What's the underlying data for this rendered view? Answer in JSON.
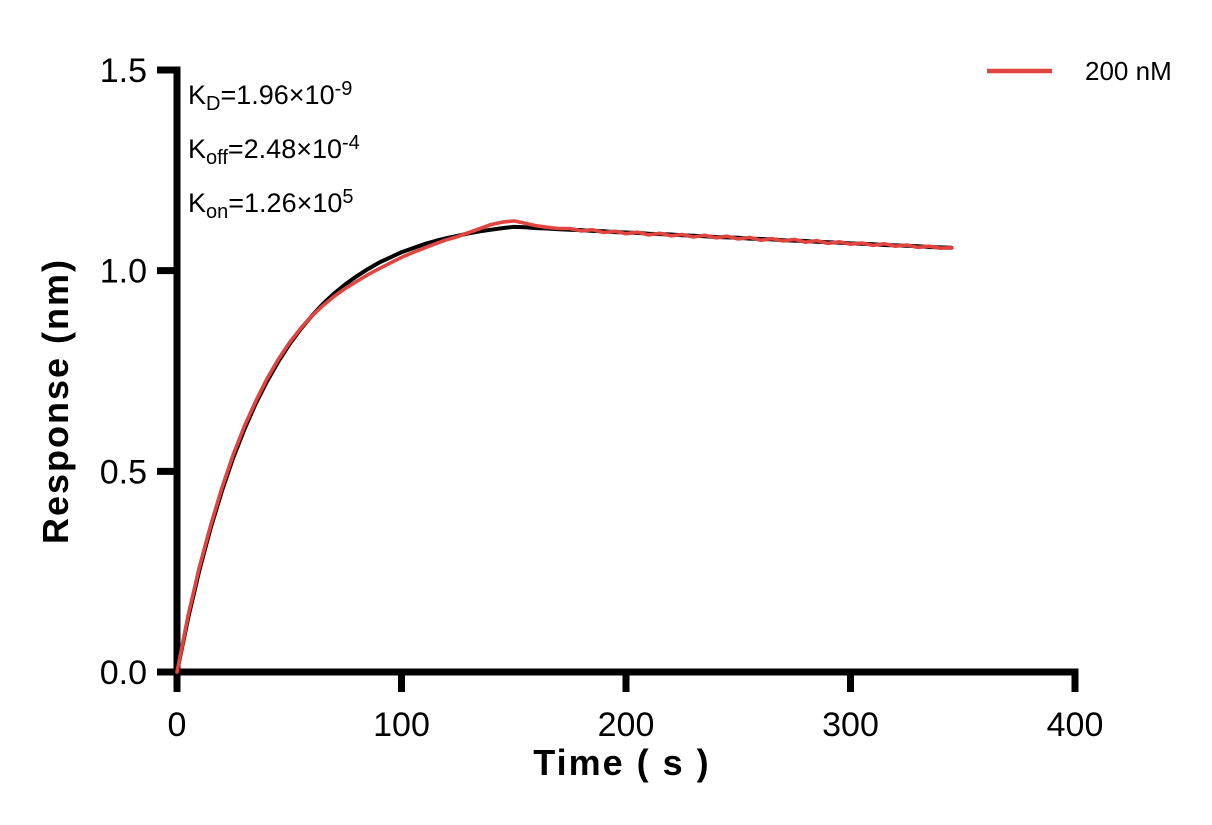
{
  "chart": {
    "background": "#ffffff",
    "axis_color": "#000000",
    "text_color": "#000000"
  },
  "chart_data": {
    "type": "line",
    "title": "",
    "xlabel": "Time ( s )",
    "ylabel": "Response (nm)",
    "xlim": [
      0,
      400
    ],
    "ylim": [
      0,
      1.5
    ],
    "x_tick_labels": [
      "0",
      "100",
      "200",
      "300",
      "400"
    ],
    "y_tick_labels": [
      "0.0",
      "0.5",
      "1.0",
      "1.5"
    ],
    "grid": false,
    "legend_position": "top-right",
    "legend": [
      {
        "label": "200 nM",
        "color": "#E2453F"
      }
    ],
    "annotations": [
      {
        "k": "K",
        "sub": "D",
        "mid": "=1.96×10",
        "sup": "-9"
      },
      {
        "k": "K",
        "sub": "off",
        "mid": "=2.48×10",
        "sup": "-4"
      },
      {
        "k": "K",
        "sub": "on",
        "mid": "=1.26×10",
        "sup": "5"
      }
    ],
    "x": [
      0,
      5,
      10,
      15,
      20,
      25,
      30,
      35,
      40,
      45,
      50,
      55,
      60,
      65,
      70,
      75,
      80,
      85,
      90,
      95,
      100,
      105,
      110,
      115,
      120,
      125,
      130,
      135,
      140,
      145,
      150,
      155,
      160,
      165,
      170,
      175,
      180,
      185,
      190,
      195,
      200,
      205,
      210,
      215,
      220,
      225,
      230,
      235,
      240,
      245,
      250,
      255,
      260,
      265,
      270,
      275,
      280,
      285,
      290,
      295,
      300,
      305,
      310,
      315,
      320,
      325,
      330,
      335,
      340,
      345
    ],
    "series": [
      {
        "name": "fit",
        "color": "#000000",
        "width": 4,
        "y": [
          0.0,
          0.135,
          0.254,
          0.359,
          0.451,
          0.533,
          0.604,
          0.668,
          0.723,
          0.772,
          0.816,
          0.854,
          0.887,
          0.917,
          0.943,
          0.966,
          0.986,
          1.004,
          1.02,
          1.033,
          1.046,
          1.056,
          1.066,
          1.074,
          1.081,
          1.087,
          1.093,
          1.098,
          1.102,
          1.106,
          1.109,
          1.108,
          1.106,
          1.105,
          1.103,
          1.102,
          1.101,
          1.099,
          1.098,
          1.096,
          1.095,
          1.094,
          1.092,
          1.091,
          1.09,
          1.088,
          1.087,
          1.086,
          1.084,
          1.083,
          1.082,
          1.08,
          1.079,
          1.078,
          1.076,
          1.075,
          1.074,
          1.072,
          1.071,
          1.07,
          1.068,
          1.067,
          1.066,
          1.064,
          1.063,
          1.062,
          1.061,
          1.059,
          1.058,
          1.057
        ]
      },
      {
        "name": "200 nM",
        "color": "#E2453F",
        "width": 3.6,
        "y": [
          0.0,
          0.142,
          0.262,
          0.366,
          0.459,
          0.541,
          0.612,
          0.674,
          0.73,
          0.778,
          0.82,
          0.856,
          0.887,
          0.913,
          0.936,
          0.956,
          0.973,
          0.99,
          1.005,
          1.019,
          1.033,
          1.045,
          1.056,
          1.067,
          1.077,
          1.085,
          1.095,
          1.105,
          1.115,
          1.121,
          1.124,
          1.118,
          1.112,
          1.108,
          1.105,
          1.105,
          1.099,
          1.102,
          1.095,
          1.098,
          1.092,
          1.096,
          1.089,
          1.093,
          1.087,
          1.09,
          1.084,
          1.088,
          1.082,
          1.086,
          1.079,
          1.083,
          1.076,
          1.08,
          1.074,
          1.078,
          1.071,
          1.075,
          1.068,
          1.072,
          1.066,
          1.069,
          1.063,
          1.067,
          1.061,
          1.064,
          1.058,
          1.061,
          1.056,
          1.057
        ]
      }
    ]
  }
}
